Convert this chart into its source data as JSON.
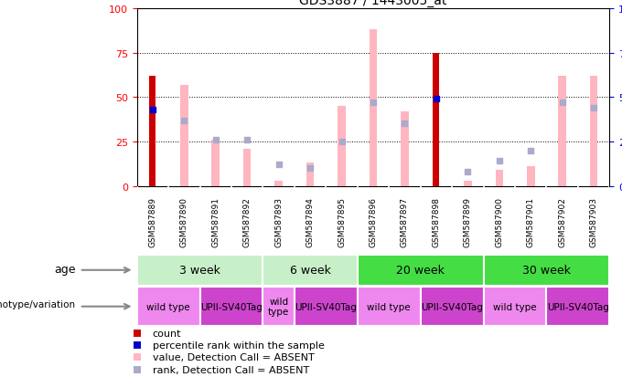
{
  "title": "GDS3887 / 1443005_at",
  "samples": [
    "GSM587889",
    "GSM587890",
    "GSM587891",
    "GSM587892",
    "GSM587893",
    "GSM587894",
    "GSM587895",
    "GSM587896",
    "GSM587897",
    "GSM587898",
    "GSM587899",
    "GSM587900",
    "GSM587901",
    "GSM587902",
    "GSM587903"
  ],
  "count_values": [
    62,
    0,
    0,
    0,
    0,
    0,
    0,
    0,
    0,
    75,
    0,
    0,
    0,
    0,
    0
  ],
  "percentile_values": [
    43,
    0,
    0,
    0,
    0,
    0,
    0,
    0,
    0,
    49,
    0,
    0,
    0,
    0,
    0
  ],
  "value_absent": [
    0,
    57,
    26,
    21,
    3,
    13,
    45,
    88,
    42,
    0,
    3,
    9,
    11,
    62,
    62
  ],
  "rank_absent": [
    0,
    37,
    26,
    26,
    12,
    10,
    25,
    47,
    35,
    0,
    8,
    14,
    20,
    47,
    44
  ],
  "age_groups": [
    {
      "label": "3 week",
      "start": 0,
      "end": 4,
      "color": "#C8F0C8"
    },
    {
      "label": "6 week",
      "start": 4,
      "end": 7,
      "color": "#C8F0C8"
    },
    {
      "label": "20 week",
      "start": 7,
      "end": 11,
      "color": "#44DD44"
    },
    {
      "label": "30 week",
      "start": 11,
      "end": 15,
      "color": "#44DD44"
    }
  ],
  "genotype_groups": [
    {
      "label": "wild type",
      "start": 0,
      "end": 2,
      "color": "#EE88EE"
    },
    {
      "label": "UPII-SV40Tag",
      "start": 2,
      "end": 4,
      "color": "#CC44CC"
    },
    {
      "label": "wild\ntype",
      "start": 4,
      "end": 5,
      "color": "#EE88EE"
    },
    {
      "label": "UPII-SV40Tag",
      "start": 5,
      "end": 7,
      "color": "#CC44CC"
    },
    {
      "label": "wild type",
      "start": 7,
      "end": 9,
      "color": "#EE88EE"
    },
    {
      "label": "UPII-SV40Tag",
      "start": 9,
      "end": 11,
      "color": "#CC44CC"
    },
    {
      "label": "wild type",
      "start": 11,
      "end": 13,
      "color": "#EE88EE"
    },
    {
      "label": "UPII-SV40Tag",
      "start": 13,
      "end": 15,
      "color": "#CC44CC"
    }
  ],
  "ylim": [
    0,
    100
  ],
  "color_count": "#CC0000",
  "color_percentile": "#0000CC",
  "color_value_absent": "#FFB6C1",
  "color_rank_absent": "#AAAACC",
  "grid_levels": [
    25,
    50,
    75
  ],
  "bar_width": 0.35,
  "tick_bg_color": "#CCCCCC"
}
